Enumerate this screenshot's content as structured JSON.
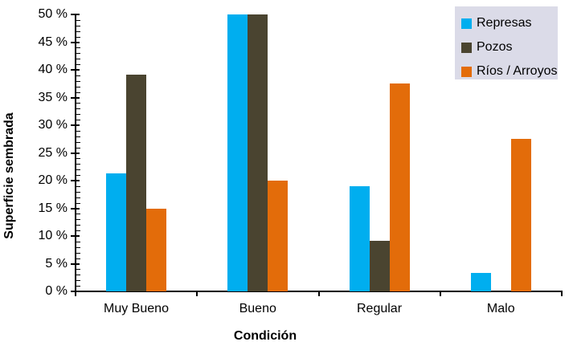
{
  "chart_data": {
    "type": "bar",
    "title": "",
    "categories": [
      "Muy Bueno",
      "Bueno",
      "Regular",
      "Malo"
    ],
    "series": [
      {
        "name": "Represas",
        "color": "#00AEEF",
        "values": [
          21.3,
          50,
          19.0,
          3.4
        ]
      },
      {
        "name": "Pozos",
        "color": "#4A4430",
        "values": [
          39.2,
          50,
          9.2,
          0
        ]
      },
      {
        "name": "Ríos / Arroyos",
        "color": "#E36C0A",
        "values": [
          15.0,
          20,
          37.5,
          27.5
        ]
      }
    ],
    "xlabel": "Condición",
    "ylabel": "Superficie sembrada",
    "ylim": [
      0,
      50
    ],
    "y_major_step": 5,
    "y_minor_step": 1,
    "y_tick_suffix": " %",
    "axis_color": "#000000",
    "text_color": "#000000",
    "grid": false,
    "legend": {
      "position": "top-right",
      "background": "#DBDBE8",
      "entries": [
        "Represas",
        "Pozos",
        "Ríos / Arroyos"
      ]
    }
  }
}
